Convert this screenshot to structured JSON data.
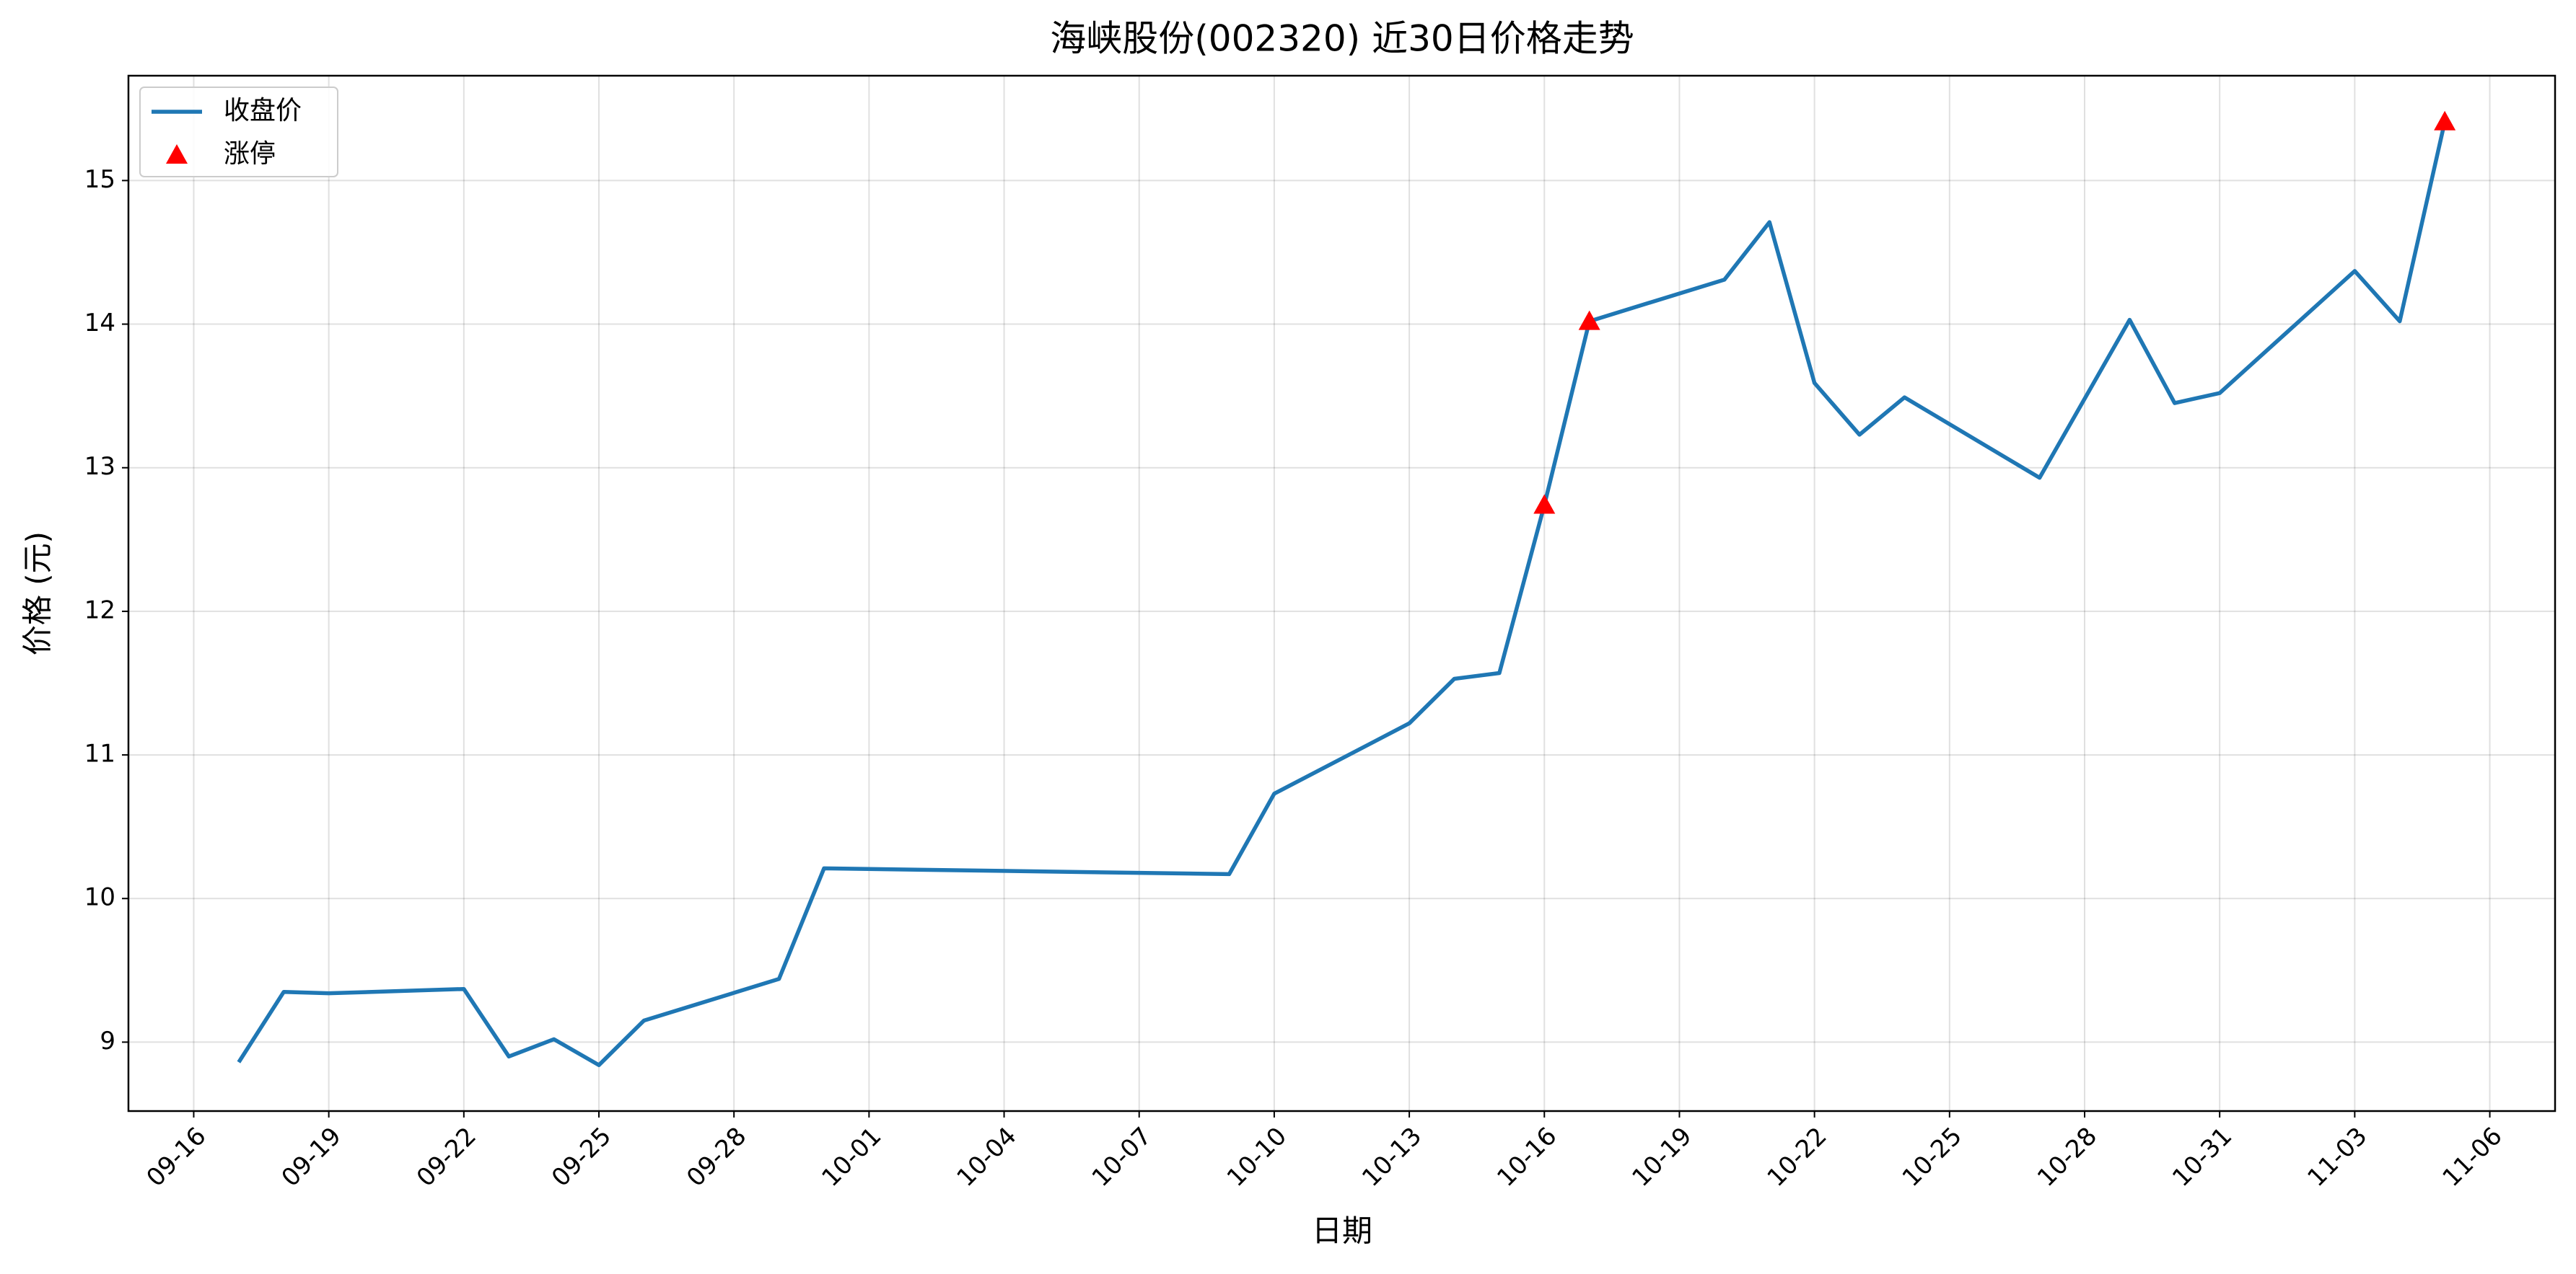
{
  "chart_data": {
    "type": "line",
    "title": "海峡股份(002320) 近30日价格走势",
    "xlabel": "日期",
    "ylabel": "价格 (元)",
    "grid": true,
    "legend": "upper left",
    "ylim": [
      8.52,
      15.73
    ],
    "yticks": [
      9,
      10,
      11,
      12,
      13,
      14,
      15
    ],
    "xticks": [
      "09-16",
      "09-19",
      "09-22",
      "09-25",
      "09-28",
      "10-01",
      "10-04",
      "10-07",
      "10-10",
      "10-13",
      "10-16",
      "10-19",
      "10-22",
      "10-25",
      "10-28",
      "10-31",
      "11-03",
      "11-06"
    ],
    "series": [
      {
        "name": "收盘价",
        "type": "line",
        "color": "#1f77b4",
        "x": [
          "09-17",
          "09-18",
          "09-19",
          "09-22",
          "09-23",
          "09-24",
          "09-25",
          "09-26",
          "09-29",
          "09-30",
          "10-09",
          "10-10",
          "10-13",
          "10-14",
          "10-15",
          "10-16",
          "10-17",
          "10-20",
          "10-21",
          "10-22",
          "10-23",
          "10-24",
          "10-27",
          "10-29",
          "10-30",
          "10-31",
          "11-03",
          "11-04",
          "11-05"
        ],
        "values": [
          8.86,
          9.35,
          9.34,
          9.37,
          8.9,
          9.02,
          8.84,
          9.15,
          9.44,
          10.21,
          10.17,
          10.73,
          11.22,
          11.53,
          11.57,
          12.74,
          14.02,
          14.31,
          14.71,
          13.59,
          13.23,
          13.49,
          12.93,
          14.03,
          13.45,
          13.52,
          14.37,
          14.02,
          15.41
        ]
      },
      {
        "name": "涨停",
        "type": "scatter",
        "color": "#ff0000",
        "x": [
          "10-16",
          "10-17",
          "11-05"
        ],
        "values": [
          12.74,
          14.02,
          15.41
        ]
      }
    ]
  }
}
